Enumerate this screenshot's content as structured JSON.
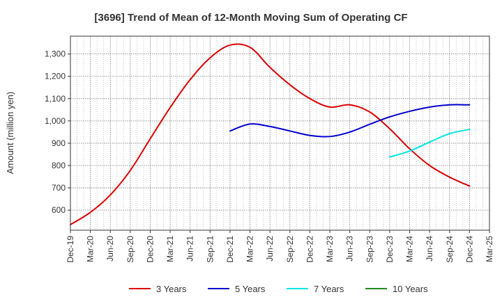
{
  "chart_data": {
    "type": "line",
    "title": "[3696]  Trend of Mean of 12-Month Moving Sum of Operating CF",
    "xlabel": "",
    "ylabel": "Amount (million yen)",
    "ylim": [
      510,
      1380
    ],
    "yticks": [
      600,
      700,
      800,
      900,
      1000,
      1100,
      1200,
      1300
    ],
    "ytick_labels": [
      "600",
      "700",
      "800",
      "900",
      "1,000",
      "1,100",
      "1,200",
      "1,300"
    ],
    "categories": [
      "Dec-19",
      "Mar-20",
      "Jun-20",
      "Sep-20",
      "Dec-20",
      "Mar-21",
      "Jun-21",
      "Sep-21",
      "Dec-21",
      "Mar-22",
      "Jun-22",
      "Sep-22",
      "Dec-22",
      "Mar-23",
      "Jun-23",
      "Sep-23",
      "Dec-23",
      "Mar-24",
      "Jun-24",
      "Sep-24",
      "Dec-24",
      "Mar-25"
    ],
    "grid": true,
    "legend_position": "bottom",
    "series": [
      {
        "name": "3 Years",
        "color": "#dd0000",
        "values": [
          535,
          590,
          668,
          778,
          920,
          1060,
          1185,
          1283,
          1340,
          1330,
          1240,
          1162,
          1100,
          1062,
          1072,
          1040,
          965,
          875,
          800,
          748,
          708,
          null
        ]
      },
      {
        "name": "5 Years",
        "color": "#0000cc",
        "values": [
          null,
          null,
          null,
          null,
          null,
          null,
          null,
          null,
          955,
          986,
          975,
          955,
          935,
          930,
          950,
          985,
          1018,
          1043,
          1062,
          1072,
          1072,
          null
        ]
      },
      {
        "name": "7 Years",
        "color": "#00e5e5",
        "values": [
          null,
          null,
          null,
          null,
          null,
          null,
          null,
          null,
          null,
          null,
          null,
          null,
          null,
          null,
          null,
          null,
          838,
          865,
          905,
          943,
          962,
          null
        ]
      },
      {
        "name": "10 Years",
        "color": "#228b22",
        "values": [
          null,
          null,
          null,
          null,
          null,
          null,
          null,
          null,
          null,
          null,
          null,
          null,
          null,
          null,
          null,
          null,
          null,
          null,
          null,
          null,
          null,
          null
        ]
      }
    ]
  }
}
